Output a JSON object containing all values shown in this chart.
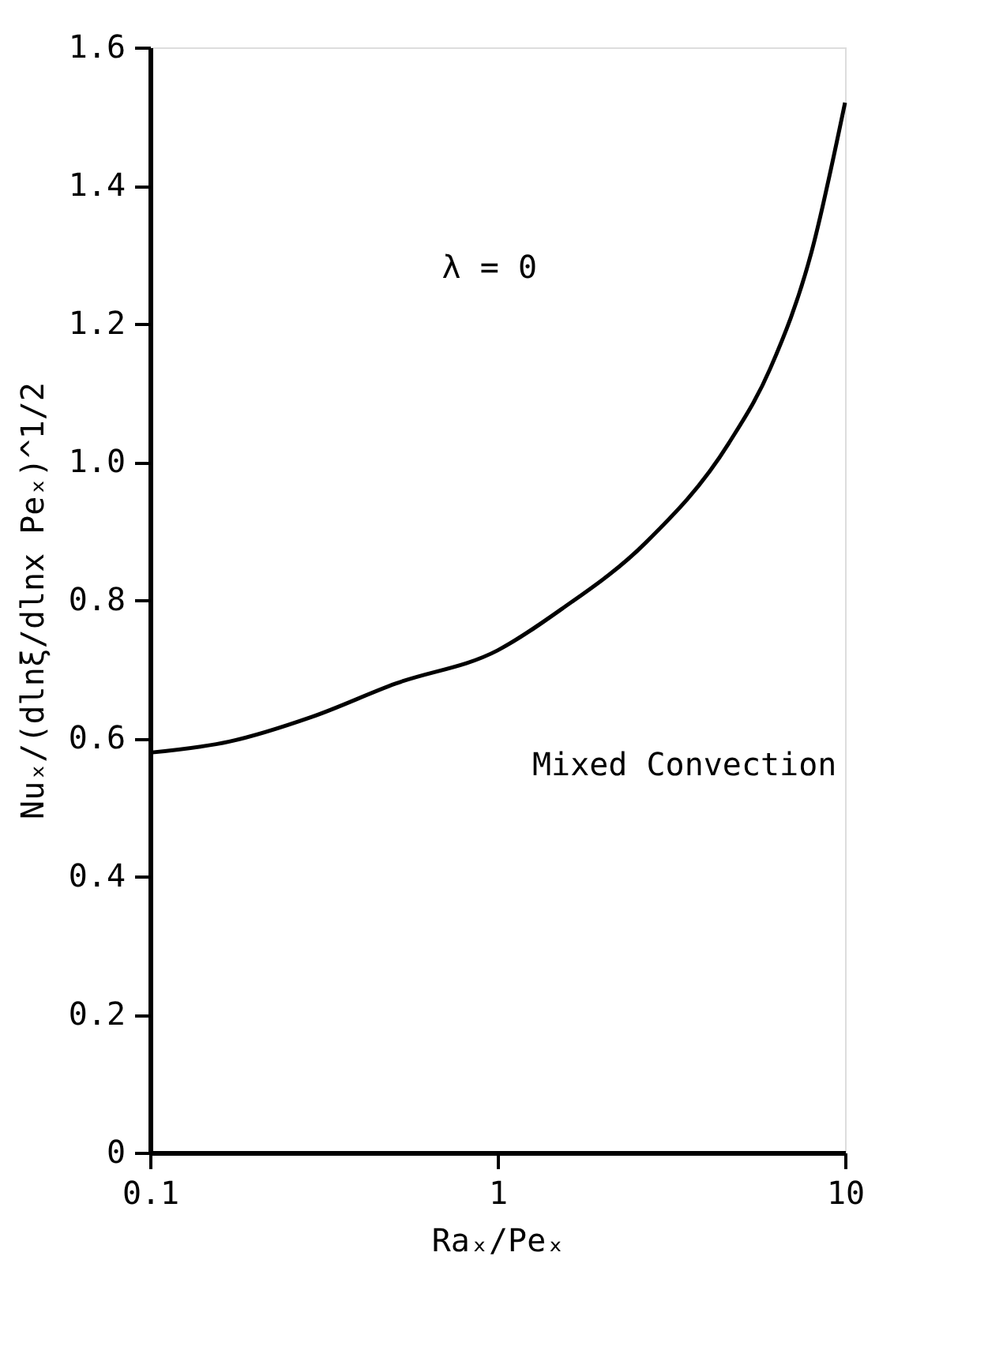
{
  "chart_data": {
    "type": "line",
    "xlabel": "Raₓ/Peₓ",
    "ylabel": "Nuₓ/(dlnξ/dlnx Peₓ)^1/2",
    "log": "x",
    "grid": false,
    "marker": "none",
    "line_style": "solid",
    "xlim": [
      0.1,
      10
    ],
    "xticks": [
      0.1,
      1,
      10
    ],
    "ylim": [
      0,
      1.6
    ],
    "yticks": [
      0,
      0.2,
      0.4,
      0.6,
      0.8,
      {
        "value": 1.0,
        "label": "1.0"
      },
      1.2,
      1.4,
      1.6
    ],
    "x": [
      0.1,
      0.169,
      0.293,
      0.509,
      1,
      1.53,
      2.67,
      4.63,
      6.09,
      8.0,
      10
    ],
    "series": [
      {
        "color": "#000000",
        "values": [
          0.579,
          0.595,
          0.631,
          0.679,
          0.727,
          0.787,
          0.883,
          1.027,
          1.135,
          1.303,
          1.52
        ]
      }
    ],
    "annotations": [
      "λ  =  0",
      "Mixed Convection"
    ]
  }
}
